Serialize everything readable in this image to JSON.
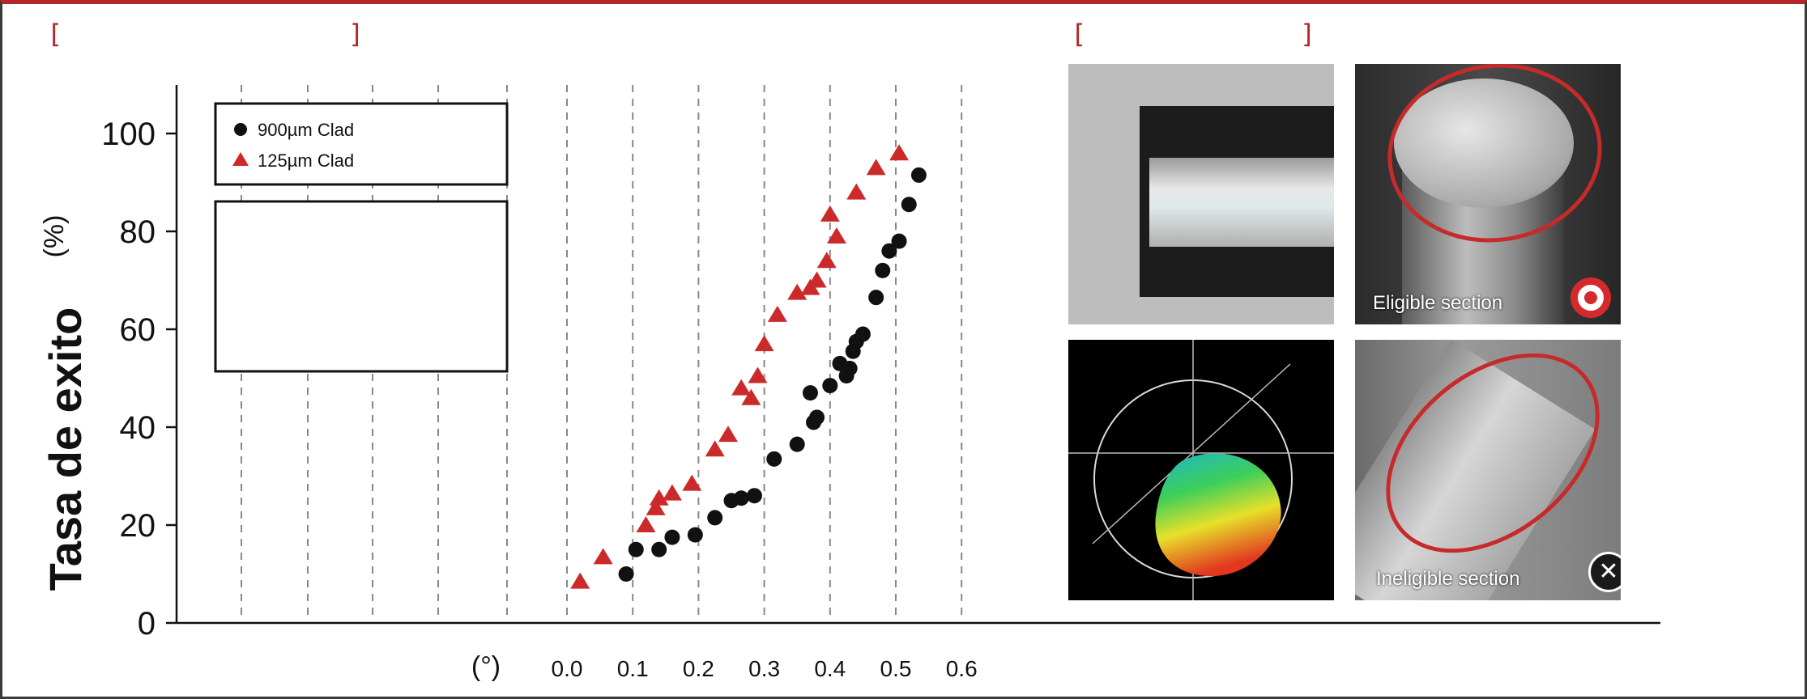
{
  "brackets": {
    "left_open": "[",
    "left_close": "]",
    "right_open": "[",
    "right_close": "]"
  },
  "chart_data": {
    "type": "scatter",
    "title": "",
    "ylabel": "Tasa de exito",
    "yunit": "(%)",
    "xunit": "(°)",
    "ylim": [
      0,
      110
    ],
    "xlim": [
      0,
      0.6
    ],
    "yticks": [
      0,
      20,
      40,
      60,
      80,
      100
    ],
    "xticks": [
      0.0,
      0.1,
      0.2,
      0.3,
      0.4,
      0.5,
      0.6
    ],
    "xtick_labels": [
      "0.0",
      "0.1",
      "0.2",
      "0.3",
      "0.4",
      "0.5",
      "0.6"
    ],
    "ytick_labels": [
      "0",
      "20",
      "40",
      "60",
      "80",
      "100"
    ],
    "grid": "vertical dashed",
    "legend_position": "top-left",
    "series": [
      {
        "name": "900µm Clad",
        "marker": "circle",
        "color": "#111111",
        "points": [
          [
            0.09,
            10
          ],
          [
            0.105,
            15
          ],
          [
            0.14,
            15
          ],
          [
            0.16,
            17.5
          ],
          [
            0.195,
            18
          ],
          [
            0.225,
            21.5
          ],
          [
            0.25,
            25
          ],
          [
            0.265,
            25.5
          ],
          [
            0.285,
            26
          ],
          [
            0.315,
            33.5
          ],
          [
            0.35,
            36.5
          ],
          [
            0.37,
            47
          ],
          [
            0.375,
            41
          ],
          [
            0.38,
            42
          ],
          [
            0.4,
            48.5
          ],
          [
            0.415,
            53
          ],
          [
            0.425,
            50.5
          ],
          [
            0.43,
            52
          ],
          [
            0.435,
            55.5
          ],
          [
            0.44,
            57.5
          ],
          [
            0.45,
            59
          ],
          [
            0.47,
            66.5
          ],
          [
            0.48,
            72
          ],
          [
            0.49,
            76
          ],
          [
            0.505,
            78
          ],
          [
            0.52,
            85.5
          ],
          [
            0.535,
            91.5
          ]
        ]
      },
      {
        "name": "125µm Clad",
        "marker": "triangle",
        "color": "#cc2a2a",
        "points": [
          [
            0.02,
            8.5
          ],
          [
            0.055,
            13.5
          ],
          [
            0.12,
            20
          ],
          [
            0.135,
            23.5
          ],
          [
            0.14,
            25.5
          ],
          [
            0.16,
            26.5
          ],
          [
            0.19,
            28.5
          ],
          [
            0.225,
            35.5
          ],
          [
            0.245,
            38.5
          ],
          [
            0.265,
            48
          ],
          [
            0.28,
            46
          ],
          [
            0.29,
            50.5
          ],
          [
            0.3,
            57
          ],
          [
            0.32,
            63
          ],
          [
            0.35,
            67.5
          ],
          [
            0.37,
            68.5
          ],
          [
            0.38,
            70
          ],
          [
            0.395,
            74
          ],
          [
            0.4,
            83.5
          ],
          [
            0.41,
            79
          ],
          [
            0.44,
            88
          ],
          [
            0.47,
            93
          ],
          [
            0.505,
            96
          ]
        ]
      }
    ]
  },
  "photos": {
    "eligible_label": "Eligible section",
    "ineligible_label": "Ineligible section"
  },
  "colors": {
    "accent": "#b3262a",
    "marker_red": "#cc2a2a",
    "marker_black": "#111111"
  },
  "icons": {
    "eligible": "target-icon",
    "ineligible": "x-icon"
  }
}
